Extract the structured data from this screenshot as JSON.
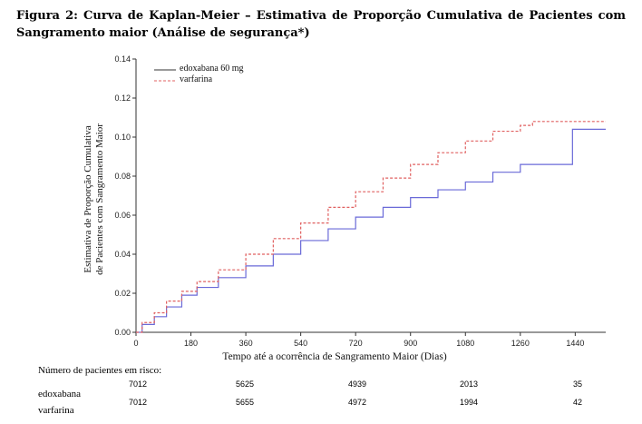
{
  "caption": {
    "line1": "Figura 2: Curva de Kaplan-Meier – Estimativa de Proporção Cumulativa de Pacientes com",
    "line2": "Sangramento maior (Análise de segurança*)"
  },
  "chart_data": {
    "type": "line",
    "xlabel": "Tempo até a ocorrência de Sangramento Maior (Dias)",
    "ylabel_line1": "Estimativa de Proporção Cumulativa",
    "ylabel_line2": "de Pacientes com Sangramento Maior",
    "xlim": [
      0,
      1540
    ],
    "ylim": [
      0,
      0.14
    ],
    "xticks": [
      0,
      180,
      360,
      540,
      720,
      900,
      1080,
      1260,
      1440
    ],
    "yticks": [
      "0.00",
      "0.02",
      "0.04",
      "0.06",
      "0.08",
      "0.10",
      "0.12",
      "0.14"
    ],
    "legend_position": "top-left",
    "series": [
      {
        "name": "edoxabana 60 mg",
        "color": "#6a6ad8",
        "style": "solid",
        "x": [
          0,
          20,
          60,
          100,
          150,
          200,
          270,
          360,
          450,
          540,
          630,
          720,
          810,
          900,
          990,
          1080,
          1170,
          1260,
          1350,
          1430,
          1431,
          1540
        ],
        "y": [
          0,
          0.004,
          0.008,
          0.013,
          0.019,
          0.023,
          0.028,
          0.034,
          0.04,
          0.047,
          0.053,
          0.059,
          0.064,
          0.069,
          0.073,
          0.077,
          0.082,
          0.086,
          0.086,
          0.086,
          0.104,
          0.104
        ]
      },
      {
        "name": "varfarina",
        "color": "#e06060",
        "style": "dashed",
        "x": [
          0,
          20,
          60,
          100,
          150,
          200,
          270,
          360,
          450,
          540,
          630,
          720,
          810,
          900,
          990,
          1080,
          1170,
          1260,
          1300,
          1350,
          1440,
          1540
        ],
        "y": [
          0,
          0.005,
          0.01,
          0.016,
          0.021,
          0.026,
          0.032,
          0.04,
          0.048,
          0.056,
          0.064,
          0.072,
          0.079,
          0.086,
          0.092,
          0.098,
          0.103,
          0.106,
          0.108,
          0.108,
          0.108,
          0.108
        ]
      }
    ]
  },
  "risk": {
    "title": "Número de pacientes em risco:",
    "rows": [
      {
        "label": "edoxabana",
        "values": [
          "7012",
          "5625",
          "4939",
          "2013",
          "35"
        ]
      },
      {
        "label": "varfarina",
        "values": [
          "7012",
          "5655",
          "4972",
          "1994",
          "42"
        ]
      }
    ]
  }
}
